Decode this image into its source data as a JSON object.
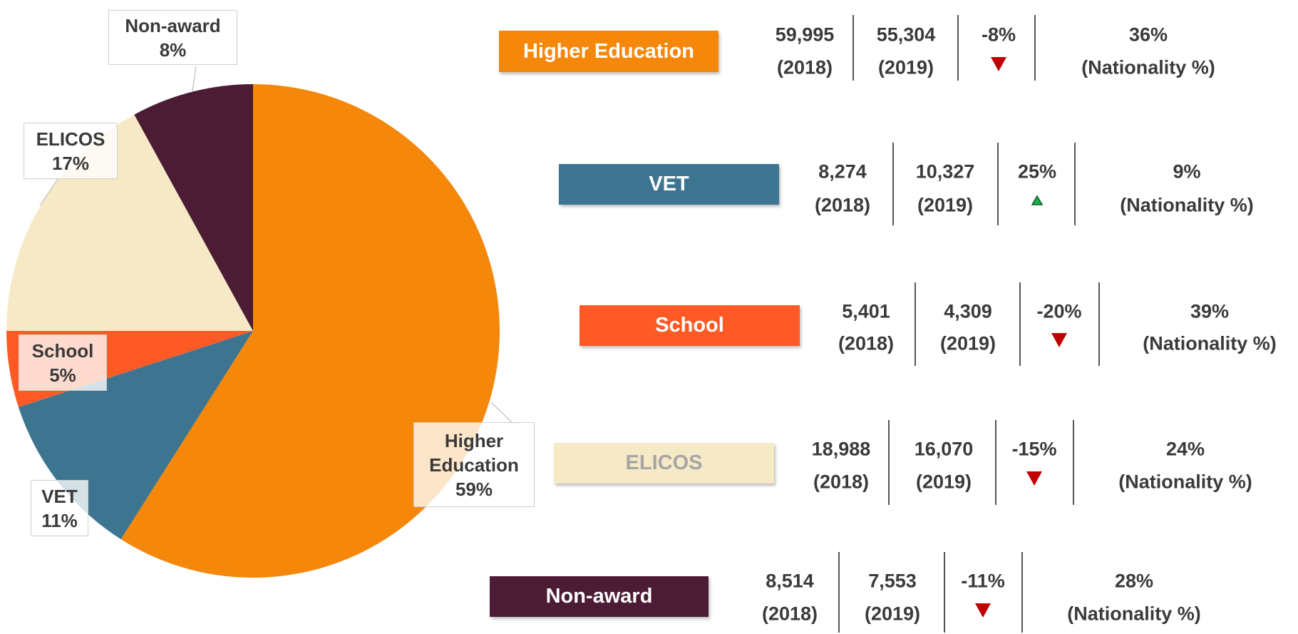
{
  "chart_data": {
    "type": "pie",
    "categories": [
      "Higher Education",
      "VET",
      "School",
      "ELICOS",
      "Non-award"
    ],
    "values": [
      59,
      11,
      5,
      17,
      8
    ],
    "value_labels": [
      "59%",
      "11%",
      "5%",
      "17%",
      "8%"
    ],
    "colors": [
      "#f5870a",
      "#3d7590",
      "#ff5a26",
      "#f6e9c6",
      "#4b1c33"
    ]
  },
  "table": {
    "col_labels": [
      "(2018)",
      "(2019)",
      "(Nationality %)"
    ],
    "rows": [
      {
        "label": "Higher Education",
        "v2018": "59,995",
        "v2019": "55,304",
        "change": "-8%",
        "trend": "down",
        "nationality": "36%",
        "color": "#f5870a",
        "text_color": "#ffffff"
      },
      {
        "label": "VET",
        "v2018": "8,274",
        "v2019": "10,327",
        "change": "25%",
        "trend": "up",
        "nationality": "9%",
        "color": "#3d7590",
        "text_color": "#ffffff"
      },
      {
        "label": "School",
        "v2018": "5,401",
        "v2019": "4,309",
        "change": "-20%",
        "trend": "down",
        "nationality": "39%",
        "color": "#ff5a26",
        "text_color": "#ffffff"
      },
      {
        "label": "ELICOS",
        "v2018": "18,988",
        "v2019": "16,070",
        "change": "-15%",
        "trend": "down",
        "nationality": "24%",
        "color": "#f6e9c6",
        "text_color": "#a6a6a6"
      },
      {
        "label": "Non-award",
        "v2018": "8,514",
        "v2019": "7,553",
        "change": "-11%",
        "trend": "down",
        "nationality": "28%",
        "color": "#4b1c33",
        "text_color": "#ffffff"
      }
    ]
  }
}
